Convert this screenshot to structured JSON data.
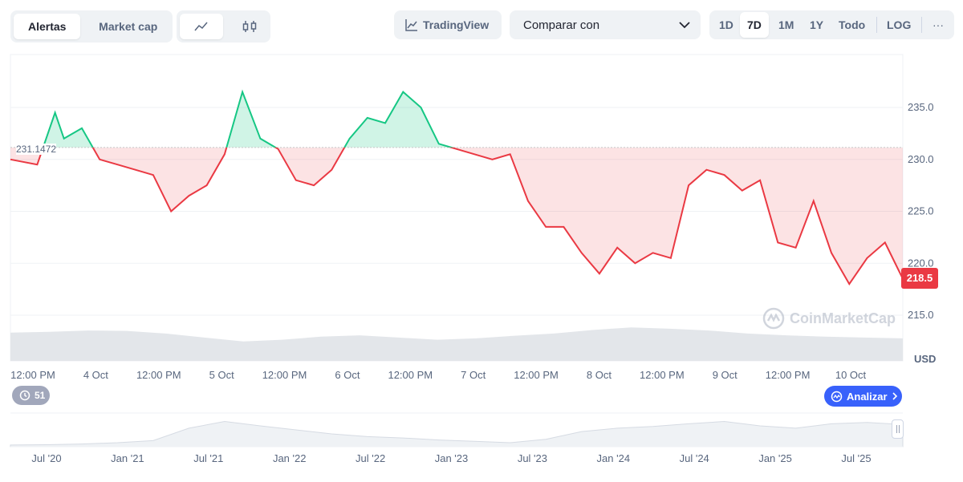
{
  "toolbar": {
    "tabs": [
      "Alertas",
      "Market cap"
    ],
    "active_tab": "Alertas",
    "chart_modes": [
      "line-chart-icon",
      "candlestick-icon"
    ],
    "tradingview_label": "TradingView",
    "compare_label": "Comparar con",
    "ranges": [
      "1D",
      "7D",
      "1M",
      "1Y",
      "Todo"
    ],
    "active_range": "7D",
    "log_label": "LOG",
    "more_label": "···"
  },
  "colors": {
    "up": "#16c784",
    "down": "#ea3943",
    "volume": "#e3e6ea",
    "nav_fill": "#eff2f5"
  },
  "reference_label": "231.1472",
  "current_price_label": "218.5",
  "watermark": "CoinMarketCap",
  "currency_label": "USD",
  "history_badge": "51",
  "analyze_button": "Analizar",
  "chart_data": {
    "type": "line",
    "reference_value": 231.1472,
    "current_value": 218.5,
    "ylim": [
      212.5,
      240.5
    ],
    "y_ticks": [
      "235.0",
      "230.0",
      "225.0",
      "220.0",
      "215.0"
    ],
    "x_ticks": [
      "12:00 PM",
      "4 Oct",
      "12:00 PM",
      "5 Oct",
      "12:00 PM",
      "6 Oct",
      "12:00 PM",
      "7 Oct",
      "12:00 PM",
      "8 Oct",
      "12:00 PM",
      "9 Oct",
      "12:00 PM",
      "10 Oct"
    ],
    "series": [
      {
        "x": [
          0,
          0.03,
          0.05,
          0.06,
          0.08,
          0.1,
          0.12,
          0.14,
          0.16,
          0.18,
          0.2,
          0.22,
          0.24,
          0.26,
          0.28,
          0.3,
          0.32,
          0.34,
          0.36,
          0.38,
          0.4,
          0.42,
          0.44,
          0.46,
          0.48,
          0.5,
          0.52,
          0.54,
          0.56,
          0.58,
          0.6,
          0.62,
          0.64,
          0.66,
          0.68,
          0.7,
          0.72,
          0.74,
          0.76,
          0.78,
          0.8,
          0.82,
          0.84,
          0.86,
          0.88,
          0.9,
          0.92,
          0.94,
          0.96,
          0.98,
          1.0
        ],
        "y": [
          230,
          229.5,
          234.5,
          232,
          233,
          230,
          229.5,
          229,
          228.5,
          225,
          226.5,
          227.5,
          230.5,
          236.5,
          232,
          231,
          228,
          227.5,
          229,
          232,
          234,
          233.5,
          236.5,
          235,
          231.5,
          231,
          230.5,
          230,
          230.5,
          226,
          223.5,
          223.5,
          221,
          219,
          221.5,
          220,
          221,
          220.5,
          227.5,
          229,
          228.5,
          227,
          228,
          222,
          221.5,
          226,
          221,
          218,
          220.5,
          222,
          218.5
        ]
      }
    ],
    "volume": [
      0.64,
      0.66,
      0.69,
      0.68,
      0.62,
      0.53,
      0.44,
      0.48,
      0.55,
      0.58,
      0.53,
      0.48,
      0.51,
      0.57,
      0.62,
      0.7,
      0.76,
      0.73,
      0.69,
      0.62,
      0.58,
      0.55,
      0.53,
      0.51
    ],
    "navigator": {
      "x_ticks": [
        "Jul '20",
        "Jan '21",
        "Jul '21",
        "Jan '22",
        "Jul '22",
        "Jan '23",
        "Jul '23",
        "Jan '24",
        "Jul '24",
        "Jan '25",
        "Jul '25"
      ],
      "values": [
        0.05,
        0.06,
        0.08,
        0.12,
        0.18,
        0.55,
        0.75,
        0.62,
        0.5,
        0.38,
        0.3,
        0.26,
        0.2,
        0.16,
        0.12,
        0.22,
        0.45,
        0.55,
        0.6,
        0.68,
        0.75,
        0.62,
        0.55,
        0.68,
        0.72,
        0.66
      ]
    }
  }
}
